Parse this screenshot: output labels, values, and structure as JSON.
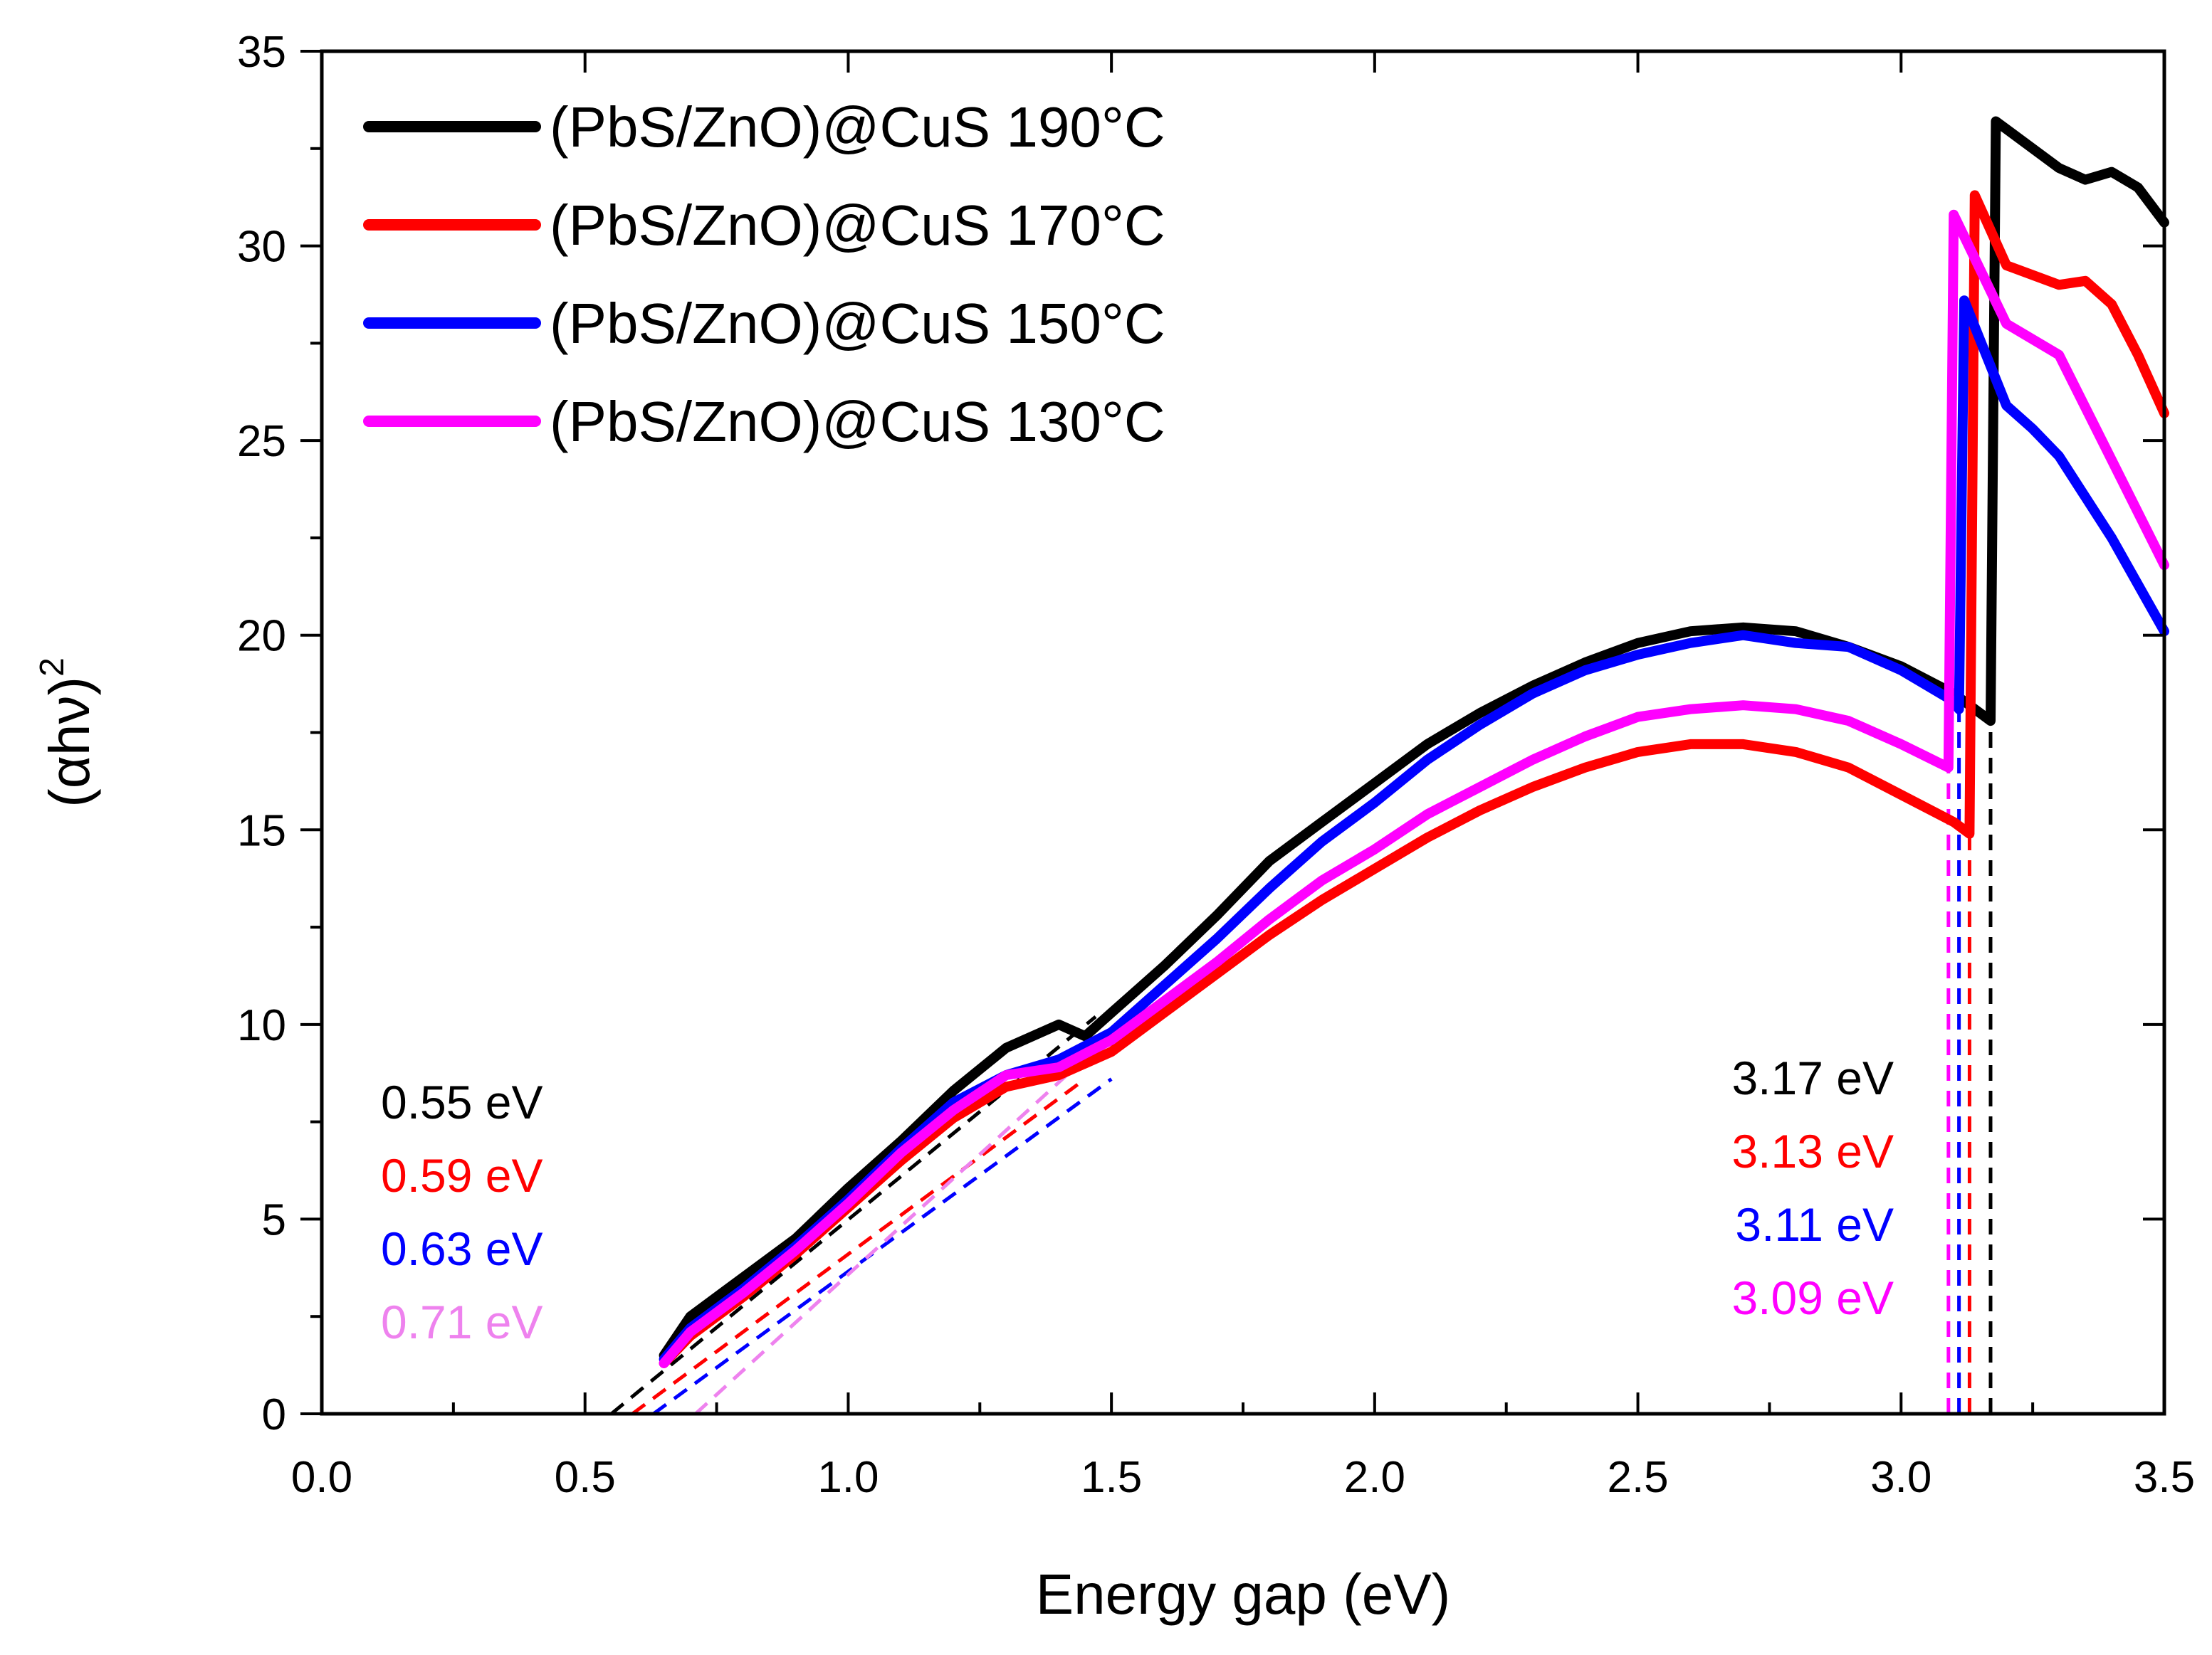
{
  "chart_data": {
    "type": "line",
    "title": "",
    "xlabel": "Energy gap (eV)",
    "ylabel": "(αhν)",
    "ylabel_superscript": "2",
    "xlim": [
      0.0,
      3.5
    ],
    "ylim": [
      0,
      35
    ],
    "x_ticks": [
      0.0,
      0.5,
      1.0,
      1.5,
      2.0,
      2.5,
      3.0,
      3.5
    ],
    "x_tick_labels": [
      "0.0",
      "0.5",
      "1.0",
      "1.5",
      "2.0",
      "2.5",
      "3.0",
      "3.5"
    ],
    "y_ticks": [
      0,
      5,
      10,
      15,
      20,
      25,
      30,
      35
    ],
    "y_tick_labels": [
      "0",
      "5",
      "10",
      "15",
      "20",
      "25",
      "30",
      "35"
    ],
    "legend_position": "top-left",
    "series": [
      {
        "name": "(PbS/ZnO)@CuS 190°C",
        "color": "#000000",
        "x": [
          0.65,
          0.7,
          0.8,
          0.9,
          1.0,
          1.1,
          1.2,
          1.3,
          1.4,
          1.45,
          1.5,
          1.6,
          1.7,
          1.8,
          1.9,
          2.0,
          2.1,
          2.2,
          2.3,
          2.4,
          2.5,
          2.6,
          2.7,
          2.8,
          2.9,
          3.0,
          3.1,
          3.17,
          3.18,
          3.2,
          3.3,
          3.35,
          3.4,
          3.45,
          3.5
        ],
        "y": [
          1.5,
          2.5,
          3.5,
          4.5,
          5.8,
          7.0,
          8.3,
          9.4,
          10.0,
          9.7,
          10.3,
          11.5,
          12.8,
          14.2,
          15.2,
          16.2,
          17.2,
          18.0,
          18.7,
          19.3,
          19.8,
          20.1,
          20.2,
          20.1,
          19.7,
          19.2,
          18.5,
          17.8,
          33.2,
          33.0,
          32.0,
          31.7,
          31.9,
          31.5,
          30.6
        ]
      },
      {
        "name": "(PbS/ZnO)@CuS 170°C",
        "color": "#ff0000",
        "x": [
          0.65,
          0.7,
          0.8,
          0.9,
          1.0,
          1.1,
          1.2,
          1.3,
          1.4,
          1.5,
          1.6,
          1.7,
          1.8,
          1.9,
          2.0,
          2.1,
          2.2,
          2.3,
          2.4,
          2.5,
          2.6,
          2.7,
          2.8,
          2.9,
          3.0,
          3.1,
          3.13,
          3.14,
          3.2,
          3.3,
          3.35,
          3.4,
          3.45,
          3.5
        ],
        "y": [
          1.3,
          2.0,
          3.0,
          4.1,
          5.3,
          6.5,
          7.6,
          8.4,
          8.7,
          9.3,
          10.3,
          11.3,
          12.3,
          13.2,
          14.0,
          14.8,
          15.5,
          16.1,
          16.6,
          17.0,
          17.2,
          17.2,
          17.0,
          16.6,
          15.9,
          15.2,
          14.9,
          31.3,
          29.5,
          29.0,
          29.1,
          28.5,
          27.2,
          25.7
        ]
      },
      {
        "name": "(PbS/ZnO)@CuS 150°C",
        "color": "#0000ff",
        "x": [
          0.65,
          0.7,
          0.8,
          0.9,
          1.0,
          1.1,
          1.2,
          1.3,
          1.4,
          1.5,
          1.6,
          1.7,
          1.8,
          1.9,
          2.0,
          2.1,
          2.2,
          2.3,
          2.4,
          2.5,
          2.6,
          2.7,
          2.8,
          2.9,
          3.0,
          3.1,
          3.11,
          3.12,
          3.2,
          3.25,
          3.3,
          3.4,
          3.5
        ],
        "y": [
          1.4,
          2.2,
          3.2,
          4.3,
          5.5,
          6.8,
          8.0,
          8.7,
          9.1,
          9.8,
          11.0,
          12.2,
          13.5,
          14.7,
          15.7,
          16.8,
          17.7,
          18.5,
          19.1,
          19.5,
          19.8,
          20.0,
          19.8,
          19.7,
          19.1,
          18.3,
          18.1,
          28.6,
          25.9,
          25.3,
          24.6,
          22.5,
          20.1
        ]
      },
      {
        "name": "(PbS/ZnO)@CuS 130°C",
        "color": "#ff00ff",
        "x": [
          0.65,
          0.7,
          0.8,
          0.9,
          1.0,
          1.1,
          1.2,
          1.3,
          1.4,
          1.5,
          1.6,
          1.7,
          1.8,
          1.9,
          2.0,
          2.1,
          2.2,
          2.3,
          2.4,
          2.5,
          2.6,
          2.7,
          2.8,
          2.9,
          3.0,
          3.09,
          3.1,
          3.2,
          3.3,
          3.4,
          3.5
        ],
        "y": [
          1.3,
          2.1,
          3.1,
          4.2,
          5.4,
          6.7,
          7.8,
          8.7,
          8.9,
          9.6,
          10.6,
          11.6,
          12.7,
          13.7,
          14.5,
          15.4,
          16.1,
          16.8,
          17.4,
          17.9,
          18.1,
          18.2,
          18.1,
          17.8,
          17.2,
          16.6,
          30.8,
          28.0,
          27.2,
          24.5,
          21.8
        ]
      }
    ],
    "fit_lines": [
      {
        "color": "#000000",
        "x": [
          0.55,
          1.47
        ],
        "y": [
          0,
          10.2
        ]
      },
      {
        "color": "#ff0000",
        "x": [
          0.59,
          1.45
        ],
        "y": [
          0,
          8.6
        ]
      },
      {
        "color": "#0000ff",
        "x": [
          0.63,
          1.5
        ],
        "y": [
          0,
          8.6
        ]
      },
      {
        "color": "#ee82ee",
        "x": [
          0.71,
          1.65
        ],
        "y": [
          0,
          11.6
        ]
      },
      {
        "color": "#000000",
        "x": [
          3.17,
          3.17
        ],
        "y": [
          0,
          17.8
        ]
      },
      {
        "color": "#ff0000",
        "x": [
          3.13,
          3.13
        ],
        "y": [
          0,
          14.9
        ]
      },
      {
        "color": "#0000ff",
        "x": [
          3.11,
          3.11
        ],
        "y": [
          0,
          18.1
        ]
      },
      {
        "color": "#ff00ff",
        "x": [
          3.09,
          3.09
        ],
        "y": [
          0,
          16.6
        ]
      }
    ],
    "annotations_left": [
      {
        "text": "0.55 eV",
        "color": "#000000"
      },
      {
        "text": "0.59 eV",
        "color": "#ff0000"
      },
      {
        "text": "0.63 eV",
        "color": "#0000ff"
      },
      {
        "text": "0.71 eV",
        "color": "#ee82ee"
      }
    ],
    "annotations_right": [
      {
        "text": "3.17 eV",
        "color": "#000000"
      },
      {
        "text": "3.13 eV",
        "color": "#ff0000"
      },
      {
        "text": "3.11 eV",
        "color": "#0000ff"
      },
      {
        "text": "3.09 eV",
        "color": "#ff00ff"
      }
    ]
  }
}
